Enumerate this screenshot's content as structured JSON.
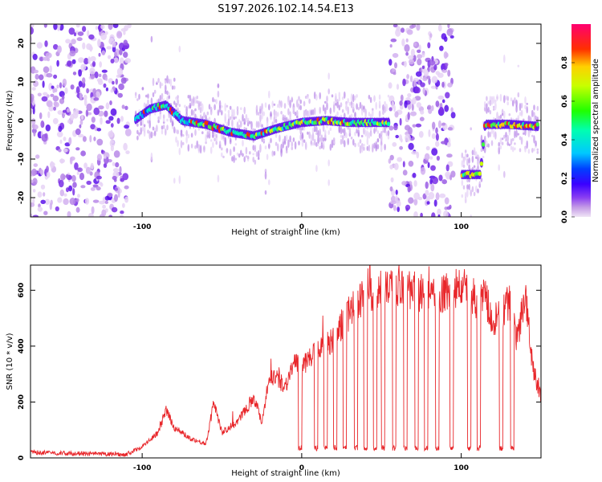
{
  "title": "S197.2026.102.14.54.E13",
  "chart_data": [
    {
      "type": "heatmap",
      "name": "spectrogram",
      "xlabel": "Height of straight line (km)",
      "ylabel": "Frequency (Hz)",
      "xlim": [
        -170,
        150
      ],
      "ylim": [
        -25,
        25
      ],
      "xticks": [
        -100,
        0,
        100
      ],
      "yticks": [
        20,
        10,
        0,
        -10,
        -20
      ],
      "colorbar": {
        "label": "Normalized spectral amplitude",
        "range": [
          0.0,
          1.0
        ],
        "ticks": [
          "0.0",
          "0.2",
          "0.4",
          "0.6",
          "0.8"
        ]
      },
      "ridge": [
        {
          "x": -105,
          "freq": 0
        },
        {
          "x": -95,
          "freq": 3
        },
        {
          "x": -85,
          "freq": 4
        },
        {
          "x": -75,
          "freq": 0
        },
        {
          "x": -60,
          "freq": -1
        },
        {
          "x": -45,
          "freq": -3
        },
        {
          "x": -30,
          "freq": -4
        },
        {
          "x": -15,
          "freq": -2
        },
        {
          "x": 0,
          "freq": -0.5
        },
        {
          "x": 15,
          "freq": 0
        },
        {
          "x": 30,
          "freq": -0.5
        },
        {
          "x": 45,
          "freq": -0.5
        },
        {
          "x": 55,
          "freq": -0.5
        },
        {
          "x": 100,
          "freq": -14
        },
        {
          "x": 112,
          "freq": -14
        },
        {
          "x": 115,
          "freq": -1
        },
        {
          "x": 130,
          "freq": -1
        },
        {
          "x": 148,
          "freq": -1.5
        }
      ],
      "noise_regions": [
        [
          -170,
          -108
        ],
        [
          55,
          95
        ]
      ]
    },
    {
      "type": "line",
      "name": "snr",
      "xlabel": "Height of straight line (km)",
      "ylabel": "SNR (10 * v/v)",
      "xlim": [
        -170,
        150
      ],
      "ylim": [
        0,
        690
      ],
      "xticks": [
        -100,
        0,
        100
      ],
      "yticks": [
        0,
        200,
        400,
        600
      ],
      "color": "#e8262a",
      "series": [
        {
          "name": "SNR",
          "x": [
            -170,
            -140,
            -110,
            -100,
            -90,
            -85,
            -80,
            -70,
            -60,
            -55,
            -50,
            -40,
            -30,
            -25,
            -20,
            -10,
            -5,
            0,
            5,
            10,
            20,
            30,
            40,
            50,
            60,
            70,
            80,
            90,
            100,
            105,
            110,
            115,
            120,
            125,
            130,
            135,
            140,
            145,
            150
          ],
          "y": [
            20,
            15,
            12,
            40,
            90,
            170,
            110,
            70,
            50,
            200,
            90,
            130,
            220,
            130,
            300,
            260,
            340,
            320,
            360,
            380,
            430,
            520,
            580,
            600,
            610,
            600,
            580,
            590,
            610,
            600,
            560,
            590,
            460,
            520,
            560,
            420,
            590,
            320,
            220
          ]
        }
      ],
      "dropouts": [
        [
          -2,
          0
        ],
        [
          8,
          10
        ],
        [
          14,
          16
        ],
        [
          20,
          22
        ],
        [
          26,
          28
        ],
        [
          33,
          35
        ],
        [
          39,
          41
        ],
        [
          45,
          47
        ],
        [
          50,
          52
        ],
        [
          57,
          59
        ],
        [
          64,
          66
        ],
        [
          71,
          73
        ],
        [
          77,
          79
        ],
        [
          84,
          86
        ],
        [
          93,
          95
        ],
        [
          104,
          106
        ],
        [
          110,
          112
        ],
        [
          124,
          126
        ],
        [
          131,
          133
        ]
      ]
    }
  ]
}
